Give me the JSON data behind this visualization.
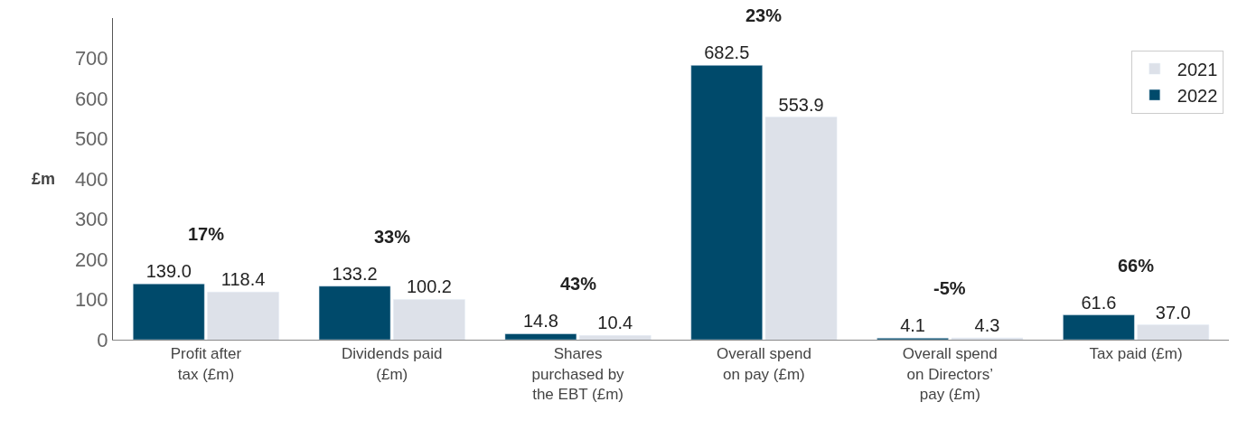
{
  "chart_data": {
    "type": "bar",
    "ylabel": "£m",
    "categories": [
      "Profit after tax (£m)",
      "Dividends paid (£m)",
      "Shares purchased by the EBT (£m)",
      "Overall spend on pay (£m)",
      "Overall spend on Directors’ pay (£m)",
      "Tax paid (£m)"
    ],
    "series": [
      {
        "name": "2022",
        "color": "#004a6b",
        "values": [
          139.0,
          133.2,
          14.8,
          682.5,
          4.1,
          61.6
        ],
        "value_labels": [
          "139.0",
          "133.2",
          "14.8",
          "682.5",
          "4.1",
          "61.6"
        ]
      },
      {
        "name": "2021",
        "color": "#dde1e9",
        "values": [
          118.4,
          100.2,
          10.4,
          553.9,
          4.3,
          37.0
        ],
        "value_labels": [
          "118.4",
          "100.2",
          "10.4",
          "553.9",
          "4.3",
          "37.0"
        ]
      }
    ],
    "annotations": [
      "17%",
      "33%",
      "43%",
      "23%",
      "-5%",
      "66%"
    ],
    "ylim": [
      0,
      800
    ],
    "yticks": [
      0,
      100,
      200,
      300,
      400,
      500,
      600,
      700
    ],
    "legend": "top right"
  }
}
